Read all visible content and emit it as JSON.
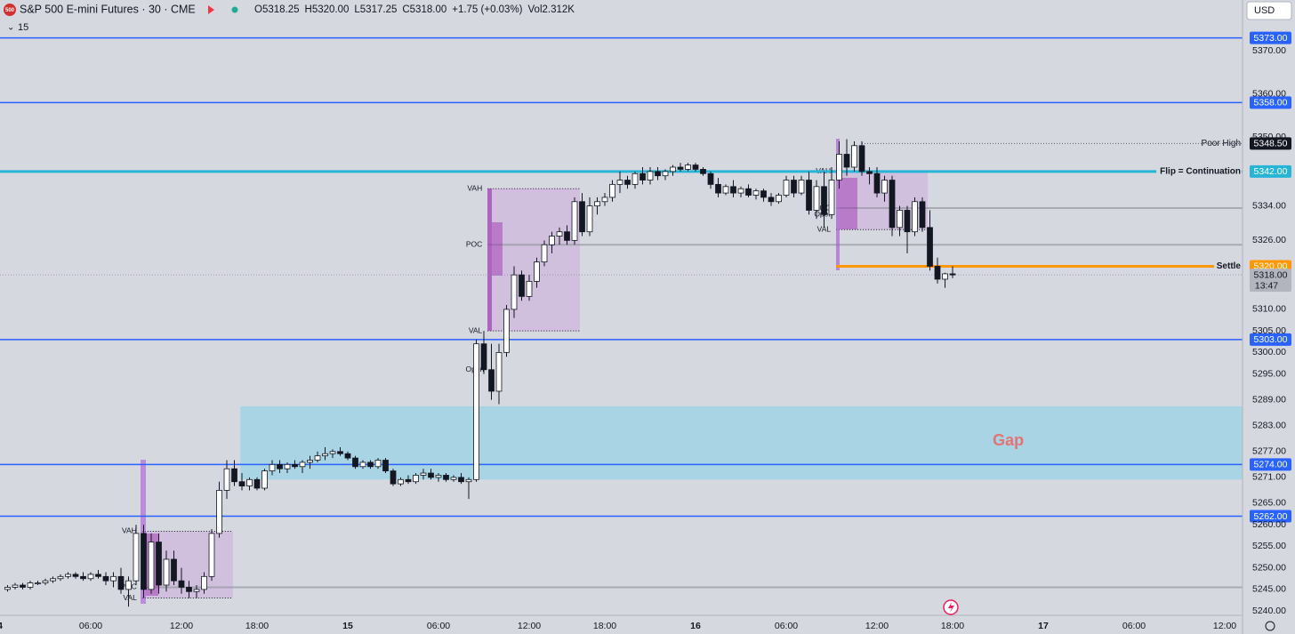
{
  "chart_data": {
    "type": "candlestick",
    "title": "S&P 500 E-mini Futures · 30 · CME",
    "badge": "500",
    "header_items": [
      "O5318.25",
      "H5320.00",
      "L5317.25",
      "C5318.00",
      "+1.75 (+0.03%)",
      "Vol2.312K"
    ],
    "interval_note": "15",
    "currency": "USD",
    "up_color": "#ffffff",
    "down_color": "#131722",
    "xlim": [
      -1,
      163.35
    ],
    "xticks": [
      {
        "value": -1,
        "label": "4"
      },
      {
        "value": 11,
        "label": "06:00"
      },
      {
        "value": 23,
        "label": "12:00"
      },
      {
        "value": 33,
        "label": "18:00"
      },
      {
        "value": 45,
        "label": "15"
      },
      {
        "value": 57,
        "label": "06:00"
      },
      {
        "value": 69,
        "label": "12:00"
      },
      {
        "value": 79,
        "label": "18:00"
      },
      {
        "value": 91,
        "label": "16"
      },
      {
        "value": 103,
        "label": "06:00"
      },
      {
        "value": 115,
        "label": "12:00"
      },
      {
        "value": 125,
        "label": "18:00"
      },
      {
        "value": 137,
        "label": "17"
      },
      {
        "value": 149,
        "label": "06:00"
      },
      {
        "value": 161,
        "label": "12:00"
      }
    ],
    "ylim": [
      5239.4,
      5381.8
    ],
    "yticks": [
      {
        "value": 5240,
        "label": "5240.00"
      },
      {
        "value": 5245,
        "label": "5245.00"
      },
      {
        "value": 5250,
        "label": "5250.00"
      },
      {
        "value": 5255,
        "label": "5255.00"
      },
      {
        "value": 5260,
        "label": "5260.00"
      },
      {
        "value": 5265,
        "label": "5265.00"
      },
      {
        "value": 5271,
        "label": "5271.00"
      },
      {
        "value": 5277,
        "label": "5277.00"
      },
      {
        "value": 5283,
        "label": "5283.00"
      },
      {
        "value": 5289,
        "label": "5289.00"
      },
      {
        "value": 5295,
        "label": "5295.00"
      },
      {
        "value": 5300,
        "label": "5300.00"
      },
      {
        "value": 5305,
        "label": "5305.00"
      },
      {
        "value": 5310,
        "label": "5310.00"
      },
      {
        "value": 5326,
        "label": "5326.00"
      },
      {
        "value": 5334,
        "label": "5334.00"
      },
      {
        "value": 5350,
        "label": "5350.00"
      },
      {
        "value": 5360,
        "label": "5360.00"
      },
      {
        "value": 5370,
        "label": "5370.00"
      }
    ],
    "candles": [
      [
        5245,
        5246,
        5244.5,
        5245.5
      ],
      [
        5245.5,
        5246.5,
        5245,
        5246
      ],
      [
        5246,
        5246.5,
        5245,
        5245.5
      ],
      [
        5245.5,
        5247,
        5245,
        5246.5
      ],
      [
        5246.5,
        5247,
        5246,
        5246.5
      ],
      [
        5246.5,
        5247.5,
        5246,
        5247
      ],
      [
        5247,
        5248,
        5246.5,
        5247.5
      ],
      [
        5247.5,
        5248.5,
        5247,
        5248
      ],
      [
        5248,
        5249,
        5247.5,
        5248.5
      ],
      [
        5248.5,
        5249,
        5247.5,
        5248
      ],
      [
        5248,
        5249,
        5247,
        5247.5
      ],
      [
        5247.5,
        5249,
        5247,
        5248.5
      ],
      [
        5248.5,
        5249.5,
        5247.5,
        5248
      ],
      [
        5248,
        5249,
        5246,
        5247
      ],
      [
        5247,
        5249,
        5245.5,
        5248
      ],
      [
        5248,
        5250,
        5244,
        5245
      ],
      [
        5245,
        5248,
        5241,
        5247
      ],
      [
        5247,
        5260,
        5246,
        5258
      ],
      [
        5258,
        5260,
        5243,
        5245
      ],
      [
        5245,
        5258,
        5244,
        5256
      ],
      [
        5256,
        5258,
        5244,
        5246
      ],
      [
        5246,
        5254,
        5244.5,
        5252
      ],
      [
        5252,
        5254,
        5246,
        5247
      ],
      [
        5247,
        5250,
        5244,
        5245.5
      ],
      [
        5245.5,
        5247,
        5243,
        5244.5
      ],
      [
        5244.5,
        5246,
        5243,
        5245
      ],
      [
        5245,
        5249,
        5244,
        5248
      ],
      [
        5248,
        5259,
        5247,
        5258
      ],
      [
        5258,
        5270,
        5257,
        5268
      ],
      [
        5268,
        5275,
        5266,
        5273
      ],
      [
        5273,
        5275,
        5269,
        5270
      ],
      [
        5270,
        5272,
        5268,
        5269
      ],
      [
        5269,
        5271,
        5268,
        5270.5
      ],
      [
        5270.5,
        5271,
        5268,
        5268.5
      ],
      [
        5268.5,
        5273,
        5268,
        5272.5
      ],
      [
        5272.5,
        5275,
        5271.5,
        5274
      ],
      [
        5274,
        5275,
        5272,
        5273
      ],
      [
        5273,
        5274.5,
        5272,
        5274
      ],
      [
        5274,
        5275,
        5273,
        5273.5
      ],
      [
        5273.5,
        5275,
        5272,
        5274.5
      ],
      [
        5274.5,
        5276,
        5273,
        5275
      ],
      [
        5275,
        5277,
        5274.5,
        5276
      ],
      [
        5276,
        5278,
        5275,
        5276.5
      ],
      [
        5276.5,
        5277.5,
        5275.5,
        5277
      ],
      [
        5277,
        5278,
        5276,
        5276.5
      ],
      [
        5276.5,
        5277,
        5275,
        5275.5
      ],
      [
        5275.5,
        5276,
        5273,
        5273.5
      ],
      [
        5273.5,
        5275,
        5273,
        5274.5
      ],
      [
        5274.5,
        5275,
        5273,
        5273.5
      ],
      [
        5273.5,
        5275.5,
        5273,
        5275
      ],
      [
        5275,
        5275.5,
        5272,
        5272.5
      ],
      [
        5272.5,
        5273,
        5269,
        5269.5
      ],
      [
        5269.5,
        5271,
        5269,
        5270.5
      ],
      [
        5270.5,
        5271.5,
        5269.5,
        5270
      ],
      [
        5270,
        5272,
        5269.5,
        5271.5
      ],
      [
        5271.5,
        5273,
        5270.5,
        5272
      ],
      [
        5272,
        5273,
        5270.5,
        5271
      ],
      [
        5271,
        5272,
        5270,
        5271.5
      ],
      [
        5271.5,
        5272,
        5270,
        5270.5
      ],
      [
        5270.5,
        5271.5,
        5270,
        5271
      ],
      [
        5271,
        5272,
        5269.5,
        5270
      ],
      [
        5270,
        5271,
        5266,
        5270.5
      ],
      [
        5270.5,
        5303,
        5270,
        5302
      ],
      [
        5302,
        5305,
        5295,
        5296
      ],
      [
        5296,
        5302,
        5289,
        5291
      ],
      [
        5291,
        5302,
        5288,
        5300
      ],
      [
        5300,
        5311,
        5299,
        5310
      ],
      [
        5310,
        5320,
        5308,
        5318
      ],
      [
        5318,
        5319,
        5312,
        5313
      ],
      [
        5313,
        5318,
        5312,
        5316.5
      ],
      [
        5316.5,
        5322,
        5315,
        5321
      ],
      [
        5321,
        5326,
        5320,
        5325
      ],
      [
        5325,
        5328,
        5323,
        5327
      ],
      [
        5327,
        5329,
        5325,
        5328
      ],
      [
        5328,
        5329.5,
        5325,
        5326
      ],
      [
        5326,
        5336,
        5325,
        5335
      ],
      [
        5335,
        5337,
        5327,
        5328
      ],
      [
        5328,
        5336,
        5327,
        5334
      ],
      [
        5334,
        5336,
        5332,
        5335
      ],
      [
        5335,
        5337,
        5334,
        5336
      ],
      [
        5336,
        5340,
        5335,
        5339
      ],
      [
        5339,
        5342,
        5337,
        5340
      ],
      [
        5340,
        5341,
        5338,
        5339
      ],
      [
        5339,
        5342,
        5338,
        5341.5
      ],
      [
        5341.5,
        5343,
        5339,
        5340
      ],
      [
        5340,
        5343,
        5339,
        5342
      ],
      [
        5342,
        5343,
        5340,
        5341
      ],
      [
        5341,
        5342.5,
        5340,
        5342
      ],
      [
        5342,
        5343.5,
        5341,
        5343
      ],
      [
        5343,
        5344,
        5342,
        5342.5
      ],
      [
        5342.5,
        5344,
        5342,
        5343.5
      ],
      [
        5343.5,
        5344,
        5342,
        5342.5
      ],
      [
        5342.5,
        5343,
        5341,
        5341.5
      ],
      [
        5341.5,
        5342,
        5338,
        5339
      ],
      [
        5339,
        5340.5,
        5336,
        5337
      ],
      [
        5337,
        5339,
        5336.5,
        5338.5
      ],
      [
        5338.5,
        5340,
        5336,
        5337
      ],
      [
        5337,
        5338.5,
        5336,
        5338
      ],
      [
        5338,
        5339,
        5336,
        5336.5
      ],
      [
        5336.5,
        5338,
        5335.5,
        5337.5
      ],
      [
        5337.5,
        5338,
        5335,
        5336
      ],
      [
        5336,
        5337,
        5334,
        5335
      ],
      [
        5335,
        5337,
        5334.5,
        5336.5
      ],
      [
        5336.5,
        5341,
        5336,
        5340
      ],
      [
        5340,
        5341,
        5336,
        5337
      ],
      [
        5337,
        5341,
        5336.5,
        5340
      ],
      [
        5340,
        5342,
        5332,
        5333
      ],
      [
        5333,
        5340,
        5331,
        5338.5
      ],
      [
        5338.5,
        5342,
        5329,
        5332
      ],
      [
        5332,
        5343,
        5331,
        5340
      ],
      [
        5340,
        5349,
        5338,
        5346
      ],
      [
        5346,
        5349.5,
        5341,
        5343
      ],
      [
        5343,
        5349,
        5342,
        5348
      ],
      [
        5348,
        5349,
        5341,
        5342
      ],
      [
        5342,
        5343,
        5339,
        5341.5
      ],
      [
        5341.5,
        5343,
        5336,
        5337
      ],
      [
        5337,
        5341,
        5335,
        5340
      ],
      [
        5340,
        5341,
        5327,
        5329
      ],
      [
        5329,
        5334,
        5327,
        5333
      ],
      [
        5333,
        5334,
        5323,
        5328
      ],
      [
        5328,
        5336,
        5327,
        5335
      ],
      [
        5335,
        5336,
        5328,
        5329
      ],
      [
        5329,
        5333,
        5319,
        5320
      ],
      [
        5320,
        5322,
        5316,
        5317
      ],
      [
        5317,
        5318.5,
        5315,
        5318.25
      ],
      [
        5318.25,
        5320,
        5317.25,
        5318
      ]
    ],
    "levels": [
      {
        "value": 5373,
        "label": "5373.00",
        "color": "#2962ff"
      },
      {
        "value": 5358,
        "label": "5358.00",
        "color": "#2962ff"
      },
      {
        "value": 5303,
        "label": "5303.00",
        "color": "#2962ff"
      },
      {
        "value": 5274,
        "label": "5274.00",
        "color": "#2962ff"
      },
      {
        "value": 5262,
        "label": "5262.00",
        "color": "#2962ff"
      },
      {
        "value": 5342,
        "label": "5342.00",
        "color": "#26b5d6",
        "note": "Flip = Continuation"
      },
      {
        "value": 5320,
        "label": "5320.00",
        "color": "#ff9800",
        "note": "Settle",
        "start": 109.6
      },
      {
        "value": 5348.5,
        "label": "5348.50",
        "color": "#131722",
        "note": "Poor High",
        "start": 113
      }
    ],
    "current": {
      "value": 5318,
      "label": "5318.00",
      "countdown": "13:47"
    },
    "zones": [
      {
        "label": "Gap",
        "top": 5287.5,
        "bottom": 5270.5,
        "start": 30.8
      }
    ],
    "va_labels": {
      "vah": "VAH",
      "poc": "POC",
      "val": "VAL",
      "open": "Open"
    },
    "value_areas": [
      {
        "start": 17.8,
        "end": 29.8,
        "vah": 5258.5,
        "val": 5243,
        "poc": 5245.5
      },
      {
        "start": 63.5,
        "end": 75.7,
        "vah": 5338,
        "val": 5305,
        "poc": 5325,
        "open": 5296
      },
      {
        "start": 109.6,
        "end": 121.7,
        "vah": 5342,
        "val": 5328.5,
        "poc": 5333.5,
        "open": 5332
      }
    ]
  }
}
